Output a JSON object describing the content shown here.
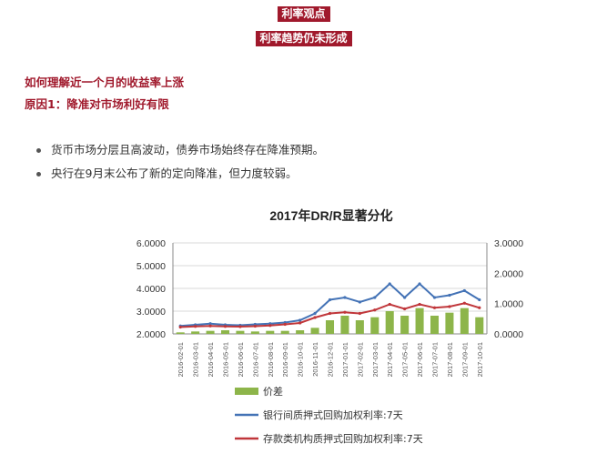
{
  "header": {
    "banner1": "利率观点",
    "banner2": "利率趋势仍未形成"
  },
  "section": {
    "heading": "如何理解近一个月的收益率上涨",
    "subheading": "原因1：降准对市场利好有限"
  },
  "bullets": [
    "货币市场分层且高波动，债券市场始终存在降准预期。",
    "央行在9月末公布了新的定向降准，但力度较弱。"
  ],
  "chart_data": {
    "type": "line",
    "title": "2017年DR/R显著分化",
    "x_categories": [
      "2016-02-01",
      "2016-03-01",
      "2016-04-01",
      "2016-05-01",
      "2016-06-01",
      "2016-07-01",
      "2016-08-01",
      "2016-09-01",
      "2016-10-01",
      "2016-11-01",
      "2016-12-01",
      "2017-01-01",
      "2017-02-01",
      "2017-03-01",
      "2017-04-01",
      "2017-05-01",
      "2017-06-01",
      "2017-07-01",
      "2017-08-01",
      "2017-09-01",
      "2017-10-01"
    ],
    "y_left": {
      "ticks": [
        "2.0000",
        "3.0000",
        "4.0000",
        "5.0000",
        "6.0000"
      ],
      "range": [
        2,
        6
      ]
    },
    "y_right": {
      "ticks": [
        "0.0000",
        "1.0000",
        "2.0000",
        "3.0000"
      ],
      "range": [
        0,
        3
      ]
    },
    "grid": true,
    "legend_position": "bottom",
    "series": [
      {
        "name": "价差",
        "kind": "bar",
        "axis": "right",
        "color": "#8db54a",
        "values": [
          0.05,
          0.08,
          0.1,
          0.12,
          0.1,
          0.08,
          0.1,
          0.1,
          0.12,
          0.2,
          0.45,
          0.6,
          0.45,
          0.55,
          0.75,
          0.6,
          0.85,
          0.6,
          0.7,
          0.85,
          0.55
        ]
      },
      {
        "name": "银行间质押式回购加权利率:7天",
        "kind": "line",
        "axis": "left",
        "color": "#4473b6",
        "values": [
          2.35,
          2.4,
          2.45,
          2.4,
          2.38,
          2.42,
          2.45,
          2.5,
          2.6,
          2.9,
          3.5,
          3.6,
          3.4,
          3.6,
          4.2,
          3.6,
          4.2,
          3.6,
          3.7,
          3.9,
          3.5
        ]
      },
      {
        "name": "存款类机构质押式回购加权利率:7天",
        "kind": "line",
        "axis": "left",
        "color": "#c0363a",
        "values": [
          2.3,
          2.33,
          2.35,
          2.33,
          2.32,
          2.34,
          2.37,
          2.42,
          2.48,
          2.72,
          2.9,
          2.95,
          2.9,
          3.05,
          3.3,
          3.1,
          3.3,
          3.15,
          3.2,
          3.35,
          3.15
        ]
      }
    ]
  }
}
